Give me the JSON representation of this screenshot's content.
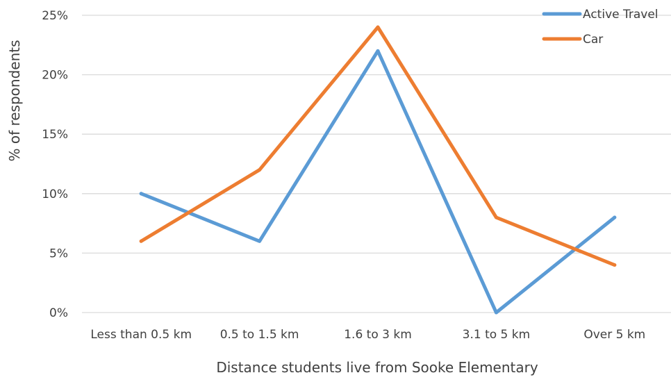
{
  "chart_data": {
    "type": "line",
    "categories": [
      "Less than 0.5 km",
      "0.5 to 1.5 km",
      "1.6 to 3 km",
      "3.1 to 5 km",
      "Over 5 km"
    ],
    "series": [
      {
        "name": "Active Travel",
        "values": [
          10,
          6,
          22,
          0,
          8
        ],
        "color": "#5b9bd5"
      },
      {
        "name": "Car",
        "values": [
          6,
          12,
          24,
          8,
          4
        ],
        "color": "#ed7d31"
      }
    ],
    "title": "",
    "xlabel": "Distance students live from Sooke Elementary",
    "ylabel": "% of respondents",
    "ylim": [
      0,
      25
    ],
    "yticks": [
      0,
      5,
      10,
      15,
      20,
      25
    ],
    "ytick_labels": [
      "0%",
      "5%",
      "10%",
      "15%",
      "20%",
      "25%"
    ],
    "grid": true,
    "gridline_color": "#d9d9d9",
    "legend_position": "top-right"
  }
}
